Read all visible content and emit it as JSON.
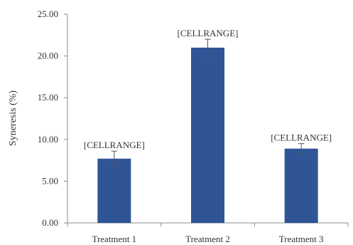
{
  "chart_data": {
    "type": "bar",
    "categories": [
      "Treatment 1",
      "Treatment 2",
      "Treatment 3"
    ],
    "values": [
      7.7,
      21.0,
      8.9
    ],
    "errors": [
      0.9,
      1.0,
      0.6
    ],
    "data_labels": [
      "[CELLRANGE]",
      "[CELLRANGE]",
      "[CELLRANGE]"
    ],
    "title": "",
    "xlabel": "",
    "ylabel": "Syneresis (%)",
    "ylim": [
      0,
      25
    ],
    "yticks": [
      "0.00",
      "5.00",
      "10.00",
      "15.00",
      "20.00",
      "25.00"
    ],
    "grid": false,
    "colors": {
      "bar": "#2F5597",
      "axis": "#8c8c8c",
      "error": "#555555"
    }
  }
}
